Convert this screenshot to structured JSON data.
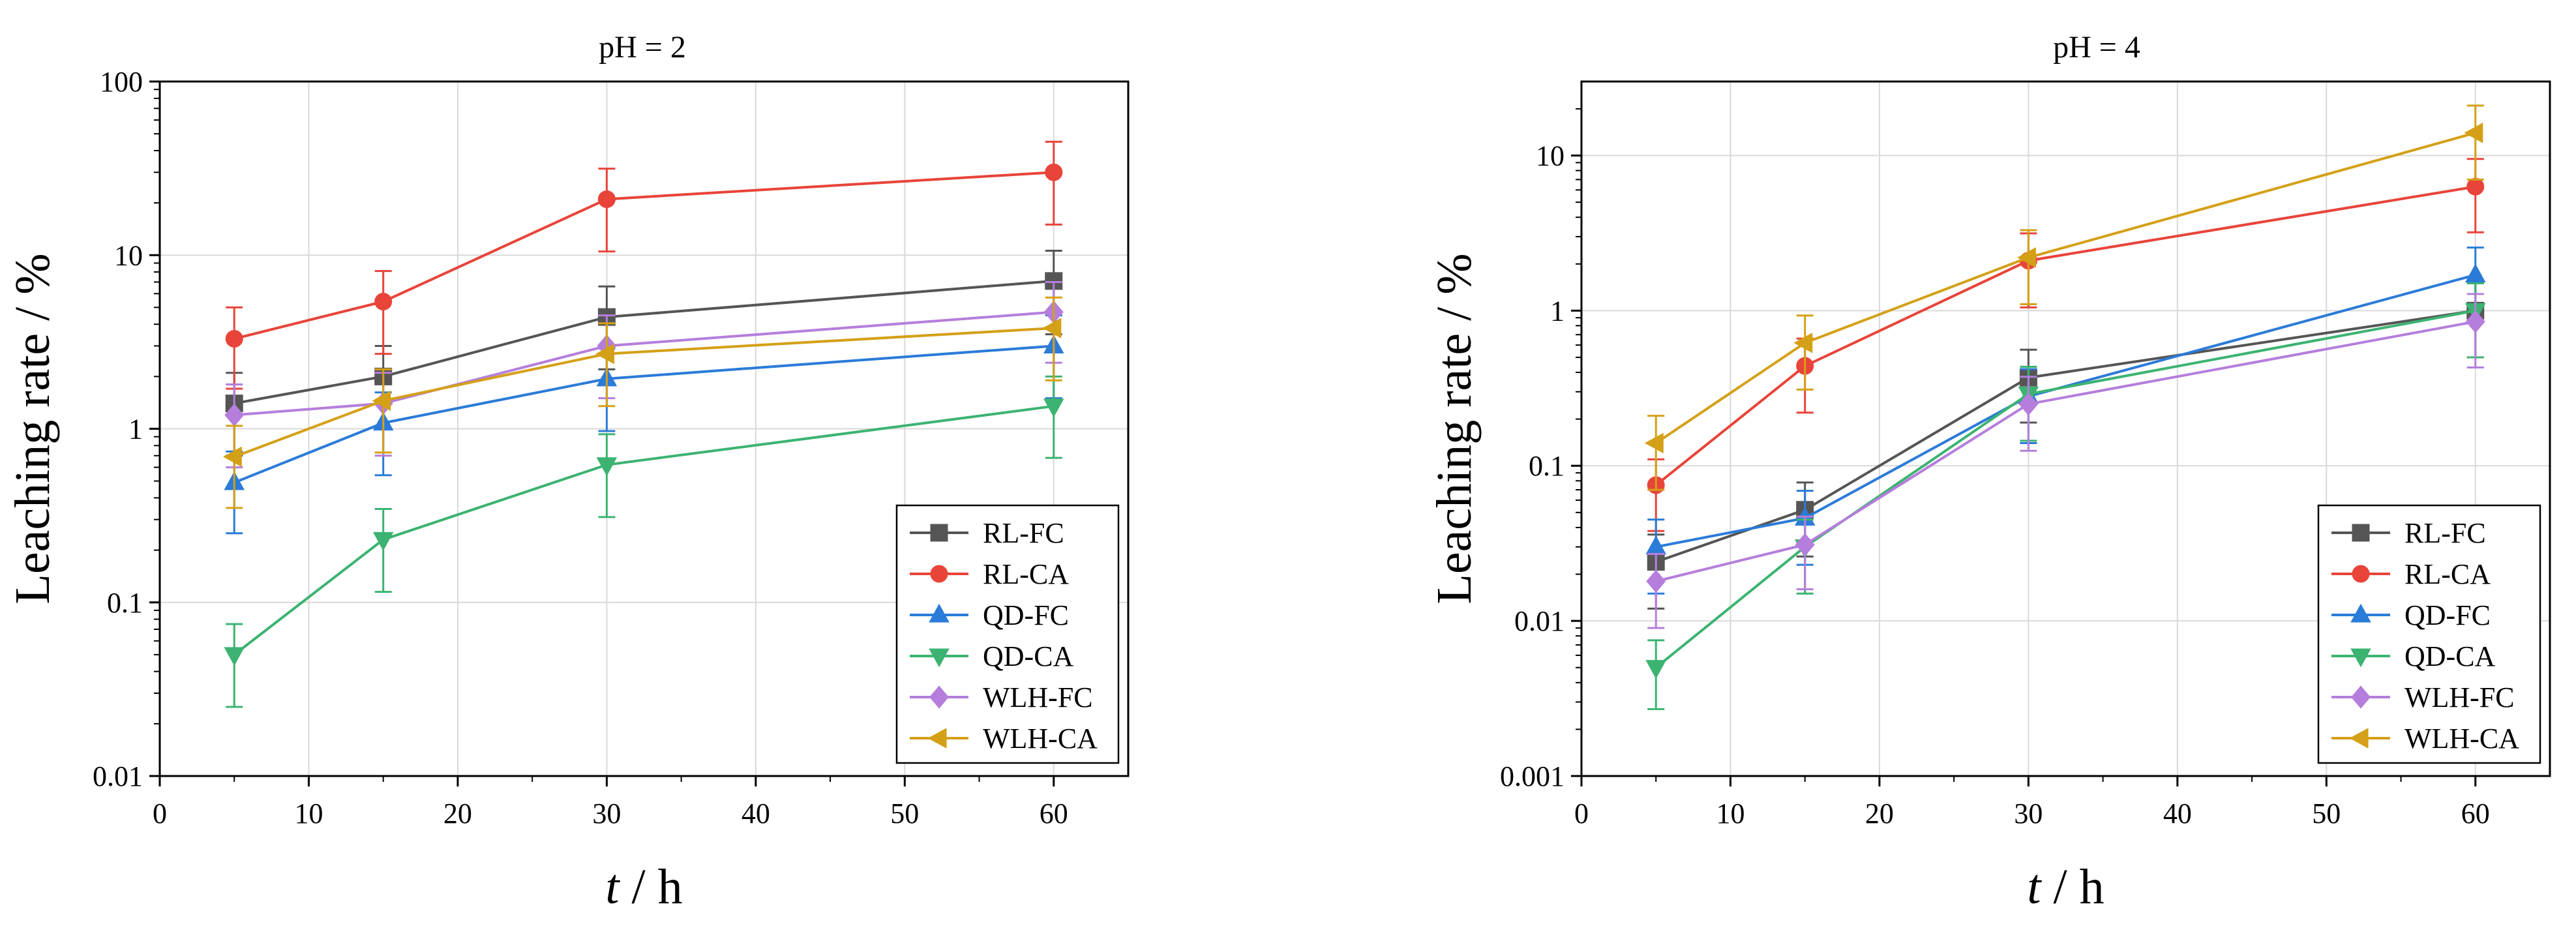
{
  "chart_data": [
    {
      "type": "line",
      "title": "pH = 2",
      "xlabel_var": "t",
      "xlabel_unit": " / h",
      "ylabel": "Leaching rate / %",
      "xlim": [
        0,
        65
      ],
      "ylim": [
        0.01,
        100
      ],
      "yscale": "log",
      "xticks": [
        0,
        10,
        20,
        30,
        40,
        50,
        60
      ],
      "yticks": [
        {
          "v": 0.01,
          "label": "0.01"
        },
        {
          "v": 0.1,
          "label": "0.1"
        },
        {
          "v": 1,
          "label": "1"
        },
        {
          "v": 10,
          "label": "10"
        },
        {
          "v": 100,
          "label": "100"
        }
      ],
      "grid": true,
      "legend": "bottom-right",
      "x": [
        5,
        15,
        30,
        60
      ],
      "series": [
        {
          "name": "RL-FC",
          "color": "#555555",
          "marker": "square",
          "values": [
            1.4,
            2.0,
            4.4,
            7.1
          ],
          "err_low": [
            0.7,
            1.0,
            2.2,
            3.5
          ],
          "err_high": [
            2.1,
            3.0,
            6.6,
            10.6
          ]
        },
        {
          "name": "RL-CA",
          "color": "#e8443a",
          "marker": "circle",
          "values": [
            3.3,
            5.4,
            21,
            30
          ],
          "err_low": [
            1.7,
            2.7,
            10.5,
            15
          ],
          "err_high": [
            5.0,
            8.1,
            31.5,
            45
          ]
        },
        {
          "name": "QD-FC",
          "color": "#2b7bd8",
          "marker": "triangle-up",
          "values": [
            0.49,
            1.08,
            1.94,
            3.0
          ],
          "err_low": [
            0.25,
            0.54,
            0.97,
            1.5
          ],
          "err_high": [
            0.74,
            1.62,
            2.9,
            4.5
          ]
        },
        {
          "name": "QD-CA",
          "color": "#3cb371",
          "marker": "triangle-down",
          "values": [
            0.05,
            0.23,
            0.62,
            1.35
          ],
          "err_low": [
            0.025,
            0.115,
            0.31,
            0.68
          ],
          "err_high": [
            0.075,
            0.345,
            0.93,
            2.0
          ]
        },
        {
          "name": "WLH-FC",
          "color": "#b57edc",
          "marker": "diamond",
          "values": [
            1.2,
            1.4,
            3.0,
            4.7
          ],
          "err_low": [
            0.6,
            0.7,
            1.5,
            2.4
          ],
          "err_high": [
            1.8,
            2.1,
            4.5,
            7.0
          ]
        },
        {
          "name": "WLH-CA",
          "color": "#d4a017",
          "marker": "triangle-left",
          "values": [
            0.69,
            1.45,
            2.7,
            3.8
          ],
          "err_low": [
            0.35,
            0.73,
            1.35,
            1.9
          ],
          "err_high": [
            1.04,
            2.2,
            4.05,
            5.7
          ]
        }
      ]
    },
    {
      "type": "line",
      "title": "pH = 4",
      "xlabel_var": "t",
      "xlabel_unit": " / h",
      "ylabel": "Leaching rate / %",
      "xlim": [
        0,
        65
      ],
      "ylim": [
        0.001,
        30
      ],
      "yscale": "log",
      "xticks": [
        0,
        10,
        20,
        30,
        40,
        50,
        60
      ],
      "yticks": [
        {
          "v": 0.001,
          "label": "0.001"
        },
        {
          "v": 0.01,
          "label": "0.01"
        },
        {
          "v": 0.1,
          "label": "0.1"
        },
        {
          "v": 1,
          "label": "1"
        },
        {
          "v": 10,
          "label": "10"
        }
      ],
      "grid": true,
      "legend": "bottom-right",
      "x": [
        5,
        15,
        30,
        60
      ],
      "series": [
        {
          "name": "RL-FC",
          "color": "#555555",
          "marker": "square",
          "values": [
            0.024,
            0.052,
            0.37,
            1.0
          ],
          "err_low": [
            0.012,
            0.026,
            0.19,
            0.5
          ],
          "err_high": [
            0.036,
            0.078,
            0.56,
            1.5
          ]
        },
        {
          "name": "RL-CA",
          "color": "#e8443a",
          "marker": "circle",
          "values": [
            0.075,
            0.44,
            2.1,
            6.3
          ],
          "err_low": [
            0.038,
            0.22,
            1.05,
            3.2
          ],
          "err_high": [
            0.11,
            0.66,
            3.15,
            9.5
          ]
        },
        {
          "name": "QD-FC",
          "color": "#2b7bd8",
          "marker": "triangle-up",
          "values": [
            0.03,
            0.046,
            0.28,
            1.7
          ],
          "err_low": [
            0.015,
            0.023,
            0.14,
            0.85
          ],
          "err_high": [
            0.045,
            0.069,
            0.42,
            2.55
          ]
        },
        {
          "name": "QD-CA",
          "color": "#3cb371",
          "marker": "triangle-down",
          "values": [
            0.005,
            0.03,
            0.29,
            1.0
          ],
          "err_low": [
            0.0027,
            0.015,
            0.145,
            0.5
          ],
          "err_high": [
            0.0075,
            0.045,
            0.435,
            1.5
          ]
        },
        {
          "name": "WLH-FC",
          "color": "#b57edc",
          "marker": "diamond",
          "values": [
            0.018,
            0.031,
            0.25,
            0.85
          ],
          "err_low": [
            0.009,
            0.016,
            0.125,
            0.43
          ],
          "err_high": [
            0.027,
            0.047,
            0.375,
            1.28
          ]
        },
        {
          "name": "WLH-CA",
          "color": "#d4a017",
          "marker": "triangle-left",
          "values": [
            0.14,
            0.62,
            2.2,
            14
          ],
          "err_low": [
            0.07,
            0.31,
            1.1,
            7
          ],
          "err_high": [
            0.21,
            0.93,
            3.3,
            21
          ]
        }
      ]
    }
  ]
}
